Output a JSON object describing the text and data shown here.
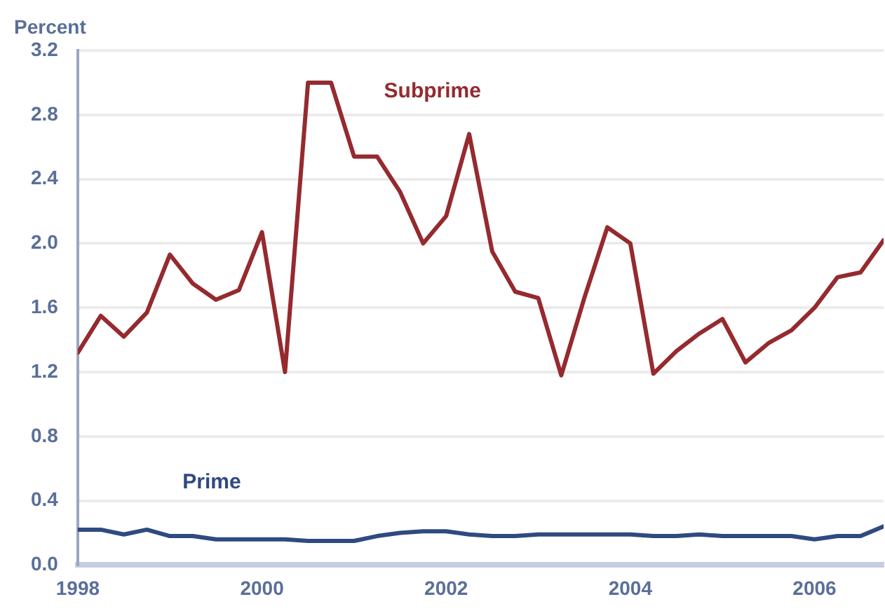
{
  "chart_data": {
    "type": "line",
    "ylabel": "Percent",
    "x": [
      1998,
      1998.25,
      1998.5,
      1998.75,
      1999,
      1999.25,
      1999.5,
      1999.75,
      2000,
      2000.25,
      2000.5,
      2000.75,
      2001,
      2001.25,
      2001.5,
      2001.75,
      2002,
      2002.25,
      2002.5,
      2002.75,
      2003,
      2003.25,
      2003.5,
      2003.75,
      2004,
      2004.25,
      2004.5,
      2004.75,
      2005,
      2005.25,
      2005.5,
      2005.75,
      2006,
      2006.25,
      2006.5,
      2006.75
    ],
    "series": [
      {
        "name": "Subprime",
        "color": "#952a2f",
        "values": [
          1.32,
          1.55,
          1.42,
          1.57,
          1.93,
          1.75,
          1.65,
          1.71,
          2.07,
          1.2,
          3.0,
          3.0,
          2.54,
          2.54,
          2.32,
          2.0,
          2.17,
          2.68,
          1.95,
          1.7,
          1.66,
          1.18,
          1.66,
          2.1,
          2.0,
          1.19,
          1.33,
          1.44,
          1.53,
          1.26,
          1.38,
          1.46,
          1.6,
          1.79,
          1.82,
          2.02
        ]
      },
      {
        "name": "Prime",
        "color": "#2f4a80",
        "values": [
          0.22,
          0.22,
          0.19,
          0.22,
          0.18,
          0.18,
          0.16,
          0.16,
          0.16,
          0.16,
          0.15,
          0.15,
          0.15,
          0.18,
          0.2,
          0.21,
          0.21,
          0.19,
          0.18,
          0.18,
          0.19,
          0.19,
          0.19,
          0.19,
          0.19,
          0.18,
          0.18,
          0.19,
          0.18,
          0.18,
          0.18,
          0.18,
          0.16,
          0.18,
          0.18,
          0.24
        ]
      }
    ],
    "xlim": [
      1998,
      2006.75
    ],
    "xticks": [
      1998,
      2000,
      2002,
      2004,
      2006
    ],
    "ylim": [
      0,
      3.2
    ],
    "yticks": [
      {
        "value": 0,
        "label": "0.0"
      },
      0.4,
      0.8,
      1.2,
      1.6,
      {
        "value": 2,
        "label": "2.0"
      },
      2.4,
      2.8,
      3.2
    ],
    "grid": "y",
    "legend": false,
    "marker": "none",
    "line_style": "solid"
  }
}
